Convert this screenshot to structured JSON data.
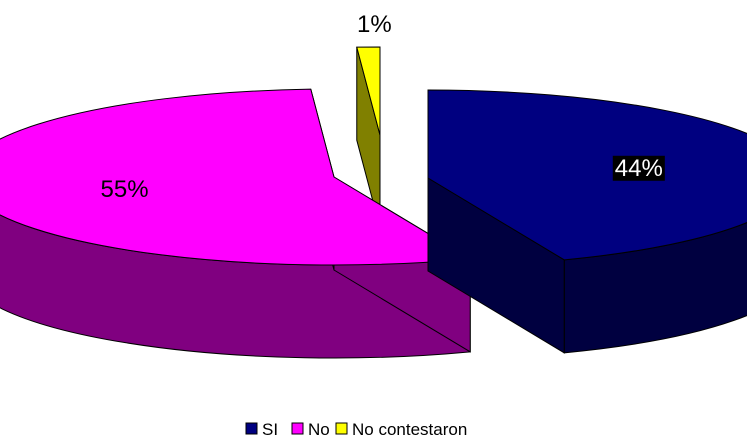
{
  "chart_data": {
    "type": "pie",
    "style": "3d-exploded",
    "slices": [
      {
        "label": "SI",
        "value": 44,
        "value_label": "44%",
        "color": "#000080"
      },
      {
        "label": "No",
        "value": 55,
        "value_label": "55%",
        "color": "#FF00FF"
      },
      {
        "label": "No contestaron",
        "value": 1,
        "value_label": "1%",
        "color": "#FFFF00"
      }
    ],
    "legend_position": "bottom"
  }
}
